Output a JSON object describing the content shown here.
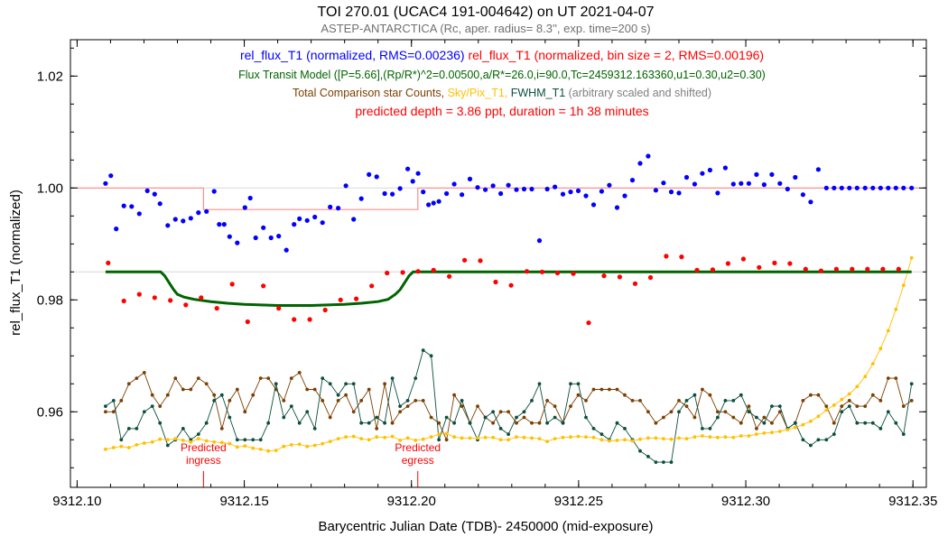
{
  "chart_data": {
    "type": "scatter",
    "title": "TOI 270.01 (UCAC4 191-004642)  on UT 2021-04-07",
    "subtitle": "ASTEP-ANTARCTICA (Rc, aper. radius= 8.3'', exp. time=200 s)",
    "xlabel": "Barycentric Julian Date (TDB)- 2450000 (mid-exposure)",
    "ylabel": "rel_flux_T1 (normalized)",
    "xlim": [
      9312.098,
      9312.354
    ],
    "ylim": [
      0.9465,
      1.0265
    ],
    "x_ticks": [
      "9312.10",
      "9312.15",
      "9312.20",
      "9312.25",
      "9312.30",
      "9312.35"
    ],
    "x_tick_values": [
      9312.1,
      9312.15,
      9312.2,
      9312.25,
      9312.3,
      9312.35
    ],
    "y_ticks": [
      "0.96",
      "0.98",
      "1.00",
      "1.02"
    ],
    "y_tick_values": [
      0.96,
      0.98,
      1.0,
      1.02
    ],
    "grid": false,
    "legend": {
      "line1": [
        {
          "text": "rel_flux_T1 (normalized, RMS=0.00236)",
          "color": "#0000ff"
        },
        {
          "text": "rel_flux_T1 (normalized, bin size = 2, RMS=0.00196)",
          "color": "#ff0000"
        }
      ],
      "line2": [
        {
          "text": "Flux Transit Model ([P=5.66],(Rp/R*)^2=0.00500,a/R*=26.0,i=90.0,Tc=2459312.163360,u1=0.30,u2=0.30)",
          "color": "#006400"
        }
      ],
      "line3": [
        {
          "text": "Total Comparison star Counts,",
          "color": "#7b3f00"
        },
        {
          "text": "Sky/Pix_T1,",
          "color": "#ffc000"
        },
        {
          "text": "FWHM_T1",
          "color": "#0b4f3c"
        },
        {
          "text": "(arbitrary scaled and shifted)",
          "color": "#808080"
        }
      ],
      "line4": [
        {
          "text": "predicted depth =  3.86 ppt,  duration =  1h 38 minutes",
          "color": "#ff0000"
        }
      ]
    },
    "annotations": [
      {
        "line1": "Predicted",
        "line2": "ingress",
        "x": 9312.1378,
        "color": "#ff0000"
      },
      {
        "line1": "Predicted",
        "line2": "egress",
        "x": 9312.2019,
        "color": "#ff0000"
      }
    ],
    "reference_lines": [
      {
        "y": 1.0,
        "color": "#d8d8d8"
      },
      {
        "y": 0.985,
        "color": "#d8d8d8"
      }
    ],
    "predicted_transit_curve": {
      "color": "#ff8c8c",
      "x": [
        9312.098,
        9312.1378,
        9312.1378,
        9312.2019,
        9312.2019,
        9312.352
      ],
      "y": [
        1.0,
        1.0,
        0.99614,
        0.99614,
        1.0,
        1.0
      ]
    },
    "x_shared": [
      9312.1085,
      9312.1109,
      9312.1132,
      9312.1155,
      9312.1178,
      9312.1201,
      9312.1225,
      9312.1248,
      9312.1271,
      9312.1294,
      9312.1317,
      9312.134,
      9312.1363,
      9312.1387,
      9312.141,
      9312.1433,
      9312.1456,
      9312.1479,
      9312.1502,
      9312.1526,
      9312.1549,
      9312.1572,
      9312.1595,
      9312.1618,
      9312.1641,
      9312.1665,
      9312.1688,
      9312.1711,
      9312.1734,
      9312.1757,
      9312.1781,
      9312.1804,
      9312.1827,
      9312.185,
      9312.1873,
      9312.1896,
      9312.192,
      9312.1943,
      9312.1966,
      9312.1989,
      9312.2012,
      9312.2035,
      9312.2059,
      9312.2082,
      9312.2105,
      9312.2128,
      9312.2151,
      9312.2175,
      9312.2198,
      9312.2221,
      9312.2244,
      9312.2267,
      9312.229,
      9312.2314,
      9312.2337,
      9312.236,
      9312.2383,
      9312.2406,
      9312.2429,
      9312.2453,
      9312.2476,
      9312.2499,
      9312.2522,
      9312.2545,
      9312.2569,
      9312.2592,
      9312.2615,
      9312.2638,
      9312.2661,
      9312.2684,
      9312.2708,
      9312.2731,
      9312.2754,
      9312.2777,
      9312.28,
      9312.2823,
      9312.2847,
      9312.287,
      9312.2893,
      9312.2916,
      9312.2939,
      9312.2963,
      9312.2986,
      9312.3009,
      9312.3032,
      9312.3055,
      9312.3078,
      9312.3102,
      9312.3125,
      9312.3148,
      9312.3171,
      9312.3194,
      9312.3217,
      9312.3241,
      9312.3264,
      9312.3287,
      9312.331,
      9312.3333,
      9312.3357,
      9312.338,
      9312.3403,
      9312.3426,
      9312.3449,
      9312.3472,
      9312.3496
    ],
    "series": [
      {
        "name": "rel_flux_T1 (normalized, RMS=0.00236)",
        "style": "dots",
        "color": "#0000ff",
        "x": [
          9312.1085,
          9312.1101,
          9312.1117,
          9312.114,
          9312.1163,
          9312.1186,
          9312.121,
          9312.1232,
          9312.1248,
          9312.1271,
          9312.1294,
          9312.1317,
          9312.134,
          9312.1363,
          9312.1387,
          9312.141,
          9312.1425,
          9312.144,
          9312.1456,
          9312.1479,
          9312.1502,
          9312.1518,
          9312.1534,
          9312.1557,
          9312.158,
          9312.1603,
          9312.1626,
          9312.1649,
          9312.1665,
          9312.1688,
          9312.1711,
          9312.1734,
          9312.1757,
          9312.1781,
          9312.1804,
          9312.1827,
          9312.185,
          9312.1873,
          9312.1896,
          9312.192,
          9312.1943,
          9312.1966,
          9312.1989,
          9312.2004,
          9312.202,
          9312.2035,
          9312.2051,
          9312.2066,
          9312.2082,
          9312.2105,
          9312.2128,
          9312.2151,
          9312.2175,
          9312.2198,
          9312.2221,
          9312.2244,
          9312.2267,
          9312.229,
          9312.2314,
          9312.2337,
          9312.236,
          9312.2383,
          9312.2406,
          9312.2429,
          9312.2453,
          9312.2476,
          9312.2499,
          9312.2522,
          9312.2545,
          9312.2569,
          9312.2592,
          9312.2615,
          9312.2638,
          9312.2661,
          9312.2684,
          9312.2708,
          9312.2731,
          9312.2754,
          9312.2777,
          9312.28,
          9312.2823,
          9312.2847,
          9312.287,
          9312.2893,
          9312.2916,
          9312.2939,
          9312.2963,
          9312.2986,
          9312.3009,
          9312.3032,
          9312.3055,
          9312.3078,
          9312.3102,
          9312.3125,
          9312.3148,
          9312.3171,
          9312.3194,
          9312.3217,
          9312.3241,
          9312.3264,
          9312.3287,
          9312.331,
          9312.3333,
          9312.3357,
          9312.338,
          9312.3403,
          9312.3426,
          9312.3449,
          9312.3472,
          9312.3496
        ],
        "y": [
          1.0008,
          1.0022,
          0.9927,
          0.9968,
          0.9967,
          0.9954,
          0.9995,
          0.9989,
          0.9972,
          0.9933,
          0.9944,
          0.9941,
          0.9946,
          0.9956,
          0.9958,
          0.9994,
          0.9935,
          0.9935,
          0.9913,
          0.9902,
          0.9965,
          0.9982,
          0.9911,
          0.9929,
          0.9911,
          0.9914,
          0.9889,
          0.9935,
          0.9945,
          0.9942,
          0.9948,
          0.9938,
          0.9966,
          0.9964,
          1.0004,
          0.9944,
          0.9981,
          1.0024,
          1.002,
          0.999,
          0.9989,
          0.9999,
          1.0034,
          1.0012,
          1.0026,
          0.9993,
          0.997,
          0.9973,
          0.9976,
          0.999,
          1.0007,
          0.9988,
          1.0016,
          1.0001,
          0.9997,
          1.0004,
          0.999,
          1.0005,
          0.9997,
          0.9998,
          0.9998,
          0.9906,
          0.9998,
          1.0002,
          0.9989,
          0.9993,
          0.9995,
          0.9986,
          0.997,
          0.9994,
          1.0005,
          0.9965,
          0.9986,
          1.0014,
          1.0044,
          1.0057,
          0.9996,
          1.0009,
          0.9993,
          0.9991,
          1.0019,
          1.0007,
          1.0026,
          1.0032,
          0.9991,
          1.0036,
          1.0007,
          1.0008,
          1.0008,
          1.0024,
          1.0006,
          1.0024,
          1.0008,
          0.9998,
          1.0019,
          0.9988,
          0.9975,
          1.0033,
          1.0,
          1.0,
          1.0,
          1.0,
          1.0,
          1.0,
          1.0,
          1.0,
          1.0,
          1.0,
          1.0,
          1.0
        ]
      },
      {
        "name": "rel_flux_T1 (normalized, bin size = 2, RMS=0.00196)",
        "style": "dots",
        "color": "#ff0000",
        "x": [
          9312.1093,
          9312.114,
          9312.1186,
          9312.1232,
          9312.1279,
          9312.1325,
          9312.1371,
          9312.1418,
          9312.1464,
          9312.151,
          9312.1557,
          9312.1603,
          9312.1649,
          9312.1696,
          9312.1742,
          9312.1788,
          9312.1835,
          9312.1881,
          9312.1927,
          9312.1974,
          9312.202,
          9312.2066,
          9312.2113,
          9312.2159,
          9312.2206,
          9312.2252,
          9312.2298,
          9312.2345,
          9312.2391,
          9312.2437,
          9312.2484,
          9312.253,
          9312.2576,
          9312.2623,
          9312.2669,
          9312.2715,
          9312.2762,
          9312.2808,
          9312.2854,
          9312.2901,
          9312.2947,
          9312.2993,
          9312.304,
          9312.3086,
          9312.3132,
          9312.3179,
          9312.3225,
          9312.3271,
          9312.3318,
          9312.3364,
          9312.341,
          9312.3457
        ],
        "y": [
          0.9866,
          0.9798,
          0.981,
          0.9804,
          0.9799,
          0.9791,
          0.9804,
          0.9785,
          0.9828,
          0.9761,
          0.9825,
          0.9785,
          0.9765,
          0.9765,
          0.9782,
          0.98,
          0.9802,
          0.9825,
          0.9848,
          0.9849,
          0.9851,
          0.9853,
          0.9842,
          0.9871,
          0.987,
          0.9832,
          0.9826,
          0.9851,
          0.985,
          0.9848,
          0.9847,
          0.9759,
          0.9843,
          0.9841,
          0.9829,
          0.984,
          0.9878,
          0.9877,
          0.9853,
          0.9854,
          0.9865,
          0.9873,
          0.9858,
          0.9866,
          0.9865,
          0.9855,
          0.9852,
          0.9855,
          0.9855,
          0.9855,
          0.9855,
          0.9855
        ]
      },
      {
        "name": "Flux Transit Model",
        "style": "line",
        "color": "#006400",
        "x": [
          9312.1085,
          9312.125,
          9312.1262,
          9312.1276,
          9312.1289,
          9312.13,
          9312.132,
          9312.135,
          9312.14,
          9312.145,
          9312.15,
          9312.155,
          9312.16,
          9312.165,
          9312.17,
          9312.175,
          9312.18,
          9312.185,
          9312.19,
          9312.193,
          9312.1952,
          9312.1966,
          9312.1979,
          9312.1993,
          9312.2005,
          9312.22,
          9312.25,
          9312.28,
          9312.31,
          9312.34,
          9312.3496
        ],
        "y": [
          0.985,
          0.985,
          0.9843,
          0.983,
          0.9818,
          0.981,
          0.9805,
          0.9801,
          0.9797,
          0.9794,
          0.9792,
          0.9791,
          0.979,
          0.979,
          0.979,
          0.9791,
          0.9792,
          0.9794,
          0.9797,
          0.9801,
          0.981,
          0.9818,
          0.983,
          0.9843,
          0.985,
          0.985,
          0.985,
          0.985,
          0.985,
          0.985,
          0.985
        ]
      },
      {
        "name": "Total Comparison star Counts",
        "style": "line-dots",
        "color": "#7b3f00",
        "y": [
          0.96,
          0.96,
          0.962,
          0.965,
          0.966,
          0.967,
          0.963,
          0.961,
          0.963,
          0.966,
          0.964,
          0.964,
          0.966,
          0.965,
          0.963,
          0.957,
          0.962,
          0.964,
          0.96,
          0.963,
          0.966,
          0.966,
          0.964,
          0.962,
          0.966,
          0.967,
          0.964,
          0.964,
          0.962,
          0.959,
          0.962,
          0.963,
          0.96,
          0.962,
          0.964,
          0.957,
          0.965,
          0.958,
          0.96,
          0.961,
          0.962,
          0.962,
          0.959,
          0.958,
          0.955,
          0.963,
          0.961,
          0.958,
          0.961,
          0.959,
          0.958,
          0.96,
          0.96,
          0.958,
          0.959,
          0.958,
          0.958,
          0.962,
          0.961,
          0.958,
          0.961,
          0.963,
          0.962,
          0.964,
          0.964,
          0.964,
          0.964,
          0.963,
          0.962,
          0.962,
          0.96,
          0.958,
          0.959,
          0.96,
          0.962,
          0.961,
          0.959,
          0.964,
          0.963,
          0.96,
          0.96,
          0.959,
          0.958,
          0.961,
          0.957,
          0.959,
          0.958,
          0.96,
          0.957,
          0.958,
          0.962,
          0.963,
          0.963,
          0.961,
          0.958,
          0.961,
          0.962,
          0.961,
          0.961,
          0.963,
          0.962,
          0.966,
          0.966,
          0.961,
          0.962
        ]
      },
      {
        "name": "Sky/Pix_T1",
        "style": "line-dots",
        "color": "#ffc000",
        "y": [
          0.9533,
          0.9536,
          0.9538,
          0.9536,
          0.9541,
          0.9544,
          0.9546,
          0.9551,
          0.955,
          0.9552,
          0.9549,
          0.9546,
          0.9552,
          0.9548,
          0.9546,
          0.9545,
          0.9543,
          0.9537,
          0.9539,
          0.9535,
          0.9533,
          0.953,
          0.9531,
          0.9538,
          0.9541,
          0.9542,
          0.9538,
          0.954,
          0.9543,
          0.9547,
          0.9552,
          0.9555,
          0.9556,
          0.9552,
          0.955,
          0.9555,
          0.9554,
          0.9556,
          0.9549,
          0.9553,
          0.9549,
          0.9551,
          0.9555,
          0.956,
          0.9561,
          0.9555,
          0.9553,
          0.9553,
          0.9553,
          0.9554,
          0.9554,
          0.955,
          0.955,
          0.9555,
          0.9554,
          0.9553,
          0.9552,
          0.9547,
          0.9552,
          0.9554,
          0.9555,
          0.9556,
          0.9555,
          0.9554,
          0.955,
          0.9548,
          0.9549,
          0.955,
          0.9548,
          0.9551,
          0.9553,
          0.9553,
          0.9552,
          0.9551,
          0.9553,
          0.9552,
          0.9555,
          0.9557,
          0.9555,
          0.9554,
          0.9555,
          0.9554,
          0.9557,
          0.9557,
          0.956,
          0.9562,
          0.9563,
          0.9565,
          0.9568,
          0.9572,
          0.9577,
          0.9583,
          0.9592,
          0.9603,
          0.9612,
          0.9622,
          0.9632,
          0.9645,
          0.9663,
          0.9686,
          0.9713,
          0.9745,
          0.9783,
          0.9826,
          0.9875
        ]
      },
      {
        "name": "FWHM_T1",
        "style": "line-dots",
        "color": "#0b4f3c",
        "y": [
          0.961,
          0.962,
          0.955,
          0.957,
          0.957,
          0.96,
          0.961,
          0.958,
          0.954,
          0.955,
          0.957,
          0.955,
          0.956,
          0.958,
          0.962,
          0.963,
          0.959,
          0.955,
          0.955,
          0.955,
          0.955,
          0.958,
          0.965,
          0.959,
          0.961,
          0.958,
          0.96,
          0.957,
          0.966,
          0.965,
          0.963,
          0.965,
          0.965,
          0.958,
          0.958,
          0.959,
          0.958,
          0.966,
          0.961,
          0.962,
          0.966,
          0.971,
          0.97,
          0.955,
          0.959,
          0.958,
          0.962,
          0.958,
          0.955,
          0.959,
          0.96,
          0.957,
          0.956,
          0.959,
          0.96,
          0.962,
          0.965,
          0.958,
          0.959,
          0.958,
          0.965,
          0.965,
          0.959,
          0.957,
          0.956,
          0.955,
          0.958,
          0.957,
          0.955,
          0.953,
          0.952,
          0.951,
          0.951,
          0.951,
          0.96,
          0.962,
          0.963,
          0.957,
          0.957,
          0.959,
          0.962,
          0.962,
          0.963,
          0.96,
          0.959,
          0.958,
          0.961,
          0.961,
          0.957,
          0.958,
          0.955,
          0.954,
          0.955,
          0.955,
          0.956,
          0.96,
          0.961,
          0.958,
          0.958,
          0.958,
          0.957,
          0.96,
          0.958,
          0.956,
          0.965
        ]
      }
    ]
  }
}
